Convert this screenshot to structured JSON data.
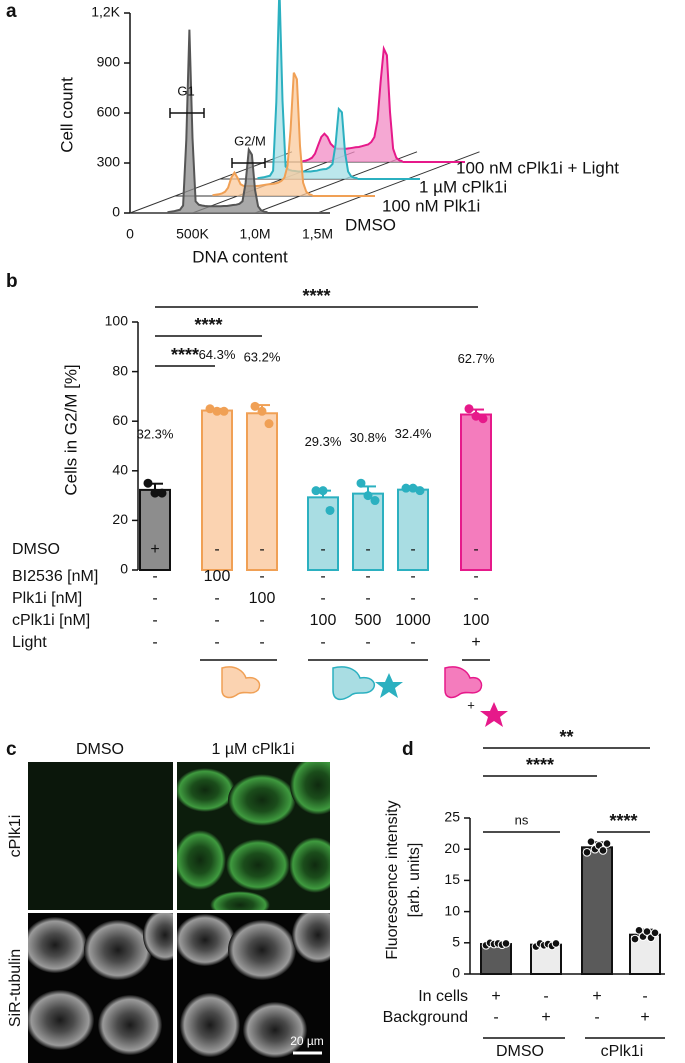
{
  "chart_data": [
    {
      "panel": "a",
      "type": "waterfall",
      "x": [
        300000,
        325000,
        350000,
        375000,
        400000,
        425000,
        450000,
        475000,
        500000,
        525000,
        550000,
        575000,
        600000,
        625000,
        650000,
        675000,
        700000,
        725000,
        750000,
        775000,
        800000,
        825000,
        850000,
        875000,
        900000,
        925000,
        950000,
        975000,
        1000000,
        1025000,
        1050000,
        1075000,
        1100000
      ],
      "xlim": [
        0,
        1600000
      ],
      "xticks": [
        0,
        {
          "value": 500000,
          "label": "500K"
        },
        {
          "value": 1000000,
          "label": "1,0M"
        },
        {
          "value": 1500000,
          "label": "1,5M"
        }
      ],
      "ylim": [
        0,
        1200
      ],
      "yticks": [
        0,
        300,
        600,
        900,
        {
          "value": 1200,
          "label": "1,2K"
        }
      ],
      "xlabel": "DNA content",
      "ylabel": "Cell count",
      "annotations": [
        "G1",
        "G2/M"
      ],
      "series": [
        {
          "name": "DMSO",
          "color": "#555555",
          "fill_color": "#8c8c8c",
          "values": [
            5,
            8,
            10,
            15,
            20,
            45,
            440,
            1100,
            450,
            70,
            50,
            45,
            42,
            40,
            40,
            40,
            40,
            40,
            42,
            42,
            45,
            48,
            50,
            55,
            70,
            180,
            380,
            350,
            140,
            40,
            15,
            8,
            5
          ]
        },
        {
          "name": "100 nM Plk1i",
          "color": "#f0a055",
          "fill_color": "#f9c99c",
          "values": [
            5,
            8,
            10,
            15,
            25,
            50,
            110,
            140,
            110,
            70,
            60,
            60,
            60,
            60,
            60,
            62,
            65,
            68,
            70,
            72,
            75,
            80,
            90,
            110,
            180,
            400,
            740,
            700,
            300,
            80,
            25,
            10,
            5
          ]
        },
        {
          "name": "1 µM cPlk1i",
          "color": "#2bb0c0",
          "fill_color": "#a6dfe6",
          "values": [
            5,
            8,
            10,
            15,
            20,
            50,
            460,
            1150,
            470,
            75,
            55,
            50,
            48,
            45,
            45,
            45,
            45,
            45,
            48,
            50,
            55,
            58,
            60,
            70,
            90,
            210,
            420,
            400,
            160,
            45,
            15,
            8,
            5
          ]
        },
        {
          "name": "100 nM cPlk1i + Light",
          "color": "#e6198a",
          "fill_color": "#f28bc4",
          "values": [
            5,
            8,
            15,
            25,
            50,
            100,
            150,
            170,
            150,
            110,
            90,
            80,
            80,
            80,
            80,
            82,
            85,
            88,
            90,
            95,
            100,
            105,
            120,
            150,
            250,
            480,
            680,
            640,
            300,
            80,
            25,
            10,
            5
          ]
        }
      ]
    },
    {
      "panel": "b",
      "type": "bar",
      "values": [
        32.3,
        64.3,
        63.2,
        29.3,
        30.8,
        32.4,
        62.7
      ],
      "value_labels": [
        "32.3%",
        "64.3%",
        "63.2%",
        "29.3%",
        "30.8%",
        "32.4%",
        "62.7%"
      ],
      "errors": [
        2.5,
        0.7,
        3.3,
        2.7,
        2.9,
        0.9,
        2.0
      ],
      "points": [
        [
          35,
          31,
          31
        ],
        [
          65,
          64,
          64
        ],
        [
          66,
          64,
          59
        ],
        [
          32,
          32,
          24
        ],
        [
          35,
          30,
          28
        ],
        [
          33,
          33,
          32
        ],
        [
          65,
          62,
          61
        ]
      ],
      "colors": [
        "#8d8d8d",
        "#fbd3b1",
        "#fbd3b1",
        "#a9dde3",
        "#a9dde3",
        "#a9dde3",
        "#f47cbd"
      ],
      "edge_colors": [
        "#111111",
        "#f0a055",
        "#f0a055",
        "#2bb0c0",
        "#2bb0c0",
        "#2bb0c0",
        "#e6198a"
      ],
      "ylim": [
        0,
        100
      ],
      "yticks": [
        0,
        20,
        40,
        60,
        80,
        100
      ],
      "ylabel": "Cells in G2/M [%]",
      "significance": [
        "****",
        "****",
        "****"
      ],
      "conditions": [
        {
          "label": "DMSO",
          "cells": [
            "+",
            "-",
            "-",
            "-",
            "-",
            "-",
            "-"
          ]
        },
        {
          "label": "BI2536 [nM]",
          "cells": [
            "-",
            "100",
            "-",
            "-",
            "-",
            "-",
            "-"
          ]
        },
        {
          "label": "Plk1i [nM]",
          "cells": [
            "-",
            "-",
            "100",
            "-",
            "-",
            "-",
            "-"
          ]
        },
        {
          "label": "cPlk1i [nM]",
          "cells": [
            "-",
            "-",
            "-",
            "100",
            "500",
            "1000",
            "100"
          ]
        },
        {
          "label": "Light",
          "cells": [
            "-",
            "-",
            "-",
            "-",
            "-",
            "-",
            "+"
          ]
        }
      ],
      "icon_plus": "+"
    },
    {
      "panel": "d",
      "type": "bar",
      "values": [
        4.8,
        4.7,
        20.3,
        6.3
      ],
      "errors": [
        0.3,
        0.3,
        0.8,
        0.8
      ],
      "points": [
        [
          4.6,
          5.0,
          4.8,
          4.9,
          4.7,
          4.9
        ],
        [
          4.4,
          4.9,
          4.6,
          4.8,
          4.5,
          4.9
        ],
        [
          19.5,
          21.2,
          20.0,
          20.6,
          19.8,
          20.9
        ],
        [
          5.6,
          7.0,
          6.0,
          6.8,
          5.8,
          6.6
        ]
      ],
      "colors": [
        "#5a5a5a",
        "#ececec",
        "#5a5a5a",
        "#ececec"
      ],
      "edge_colors": [
        "#111111",
        "#111111",
        "#111111",
        "#111111"
      ],
      "ylim": [
        0,
        25
      ],
      "yticks": [
        0,
        5,
        10,
        15,
        20,
        25
      ],
      "ylabel": [
        "Fluorescence intensity",
        "[arb. units]"
      ],
      "significance": [
        "ns",
        "****",
        "**",
        "****"
      ],
      "conditions": [
        {
          "label": "In cells",
          "cells": [
            "+",
            "-",
            "+",
            "-"
          ]
        },
        {
          "label": "Background",
          "cells": [
            "-",
            "+",
            "-",
            "+"
          ]
        }
      ],
      "groups": [
        "DMSO",
        "cPlk1i"
      ]
    }
  ],
  "image_panel": {
    "panel": "c",
    "columns": [
      "DMSO",
      "1 µM cPlk1i"
    ],
    "rows": [
      "cPlk1i",
      "SiR-tubulin"
    ],
    "scale_bar": "20 µm"
  }
}
